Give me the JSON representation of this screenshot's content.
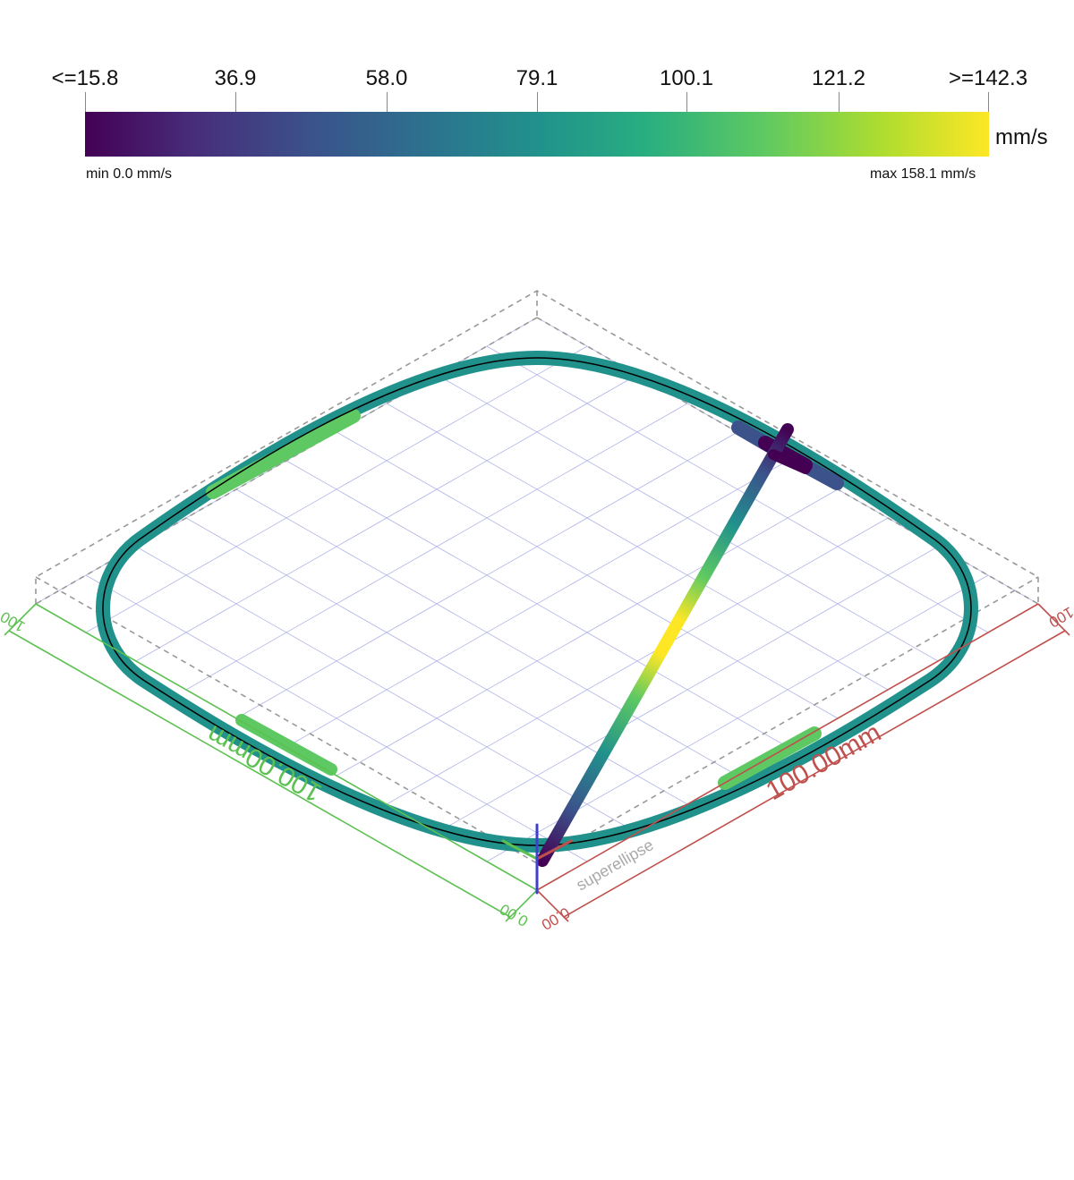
{
  "colorbar": {
    "ticks": [
      "<=15.8",
      "36.9",
      "58.0",
      "79.1",
      "100.1",
      "121.2",
      ">=142.3"
    ],
    "unit": "mm/s",
    "min_label": "min 0.0 mm/s",
    "max_label": "max 158.1 mm/s",
    "colormap": "viridis",
    "colors": [
      "#440154",
      "#472d7b",
      "#3b528b",
      "#2c728e",
      "#21918c",
      "#28ae80",
      "#5ec962",
      "#addc30",
      "#fde725"
    ]
  },
  "scene": {
    "object_label": "superellipse",
    "x_axis": {
      "dimension": "100.00mm",
      "start": "0.00",
      "end": "100",
      "color": "#c0504d"
    },
    "y_axis": {
      "dimension": "100.00mm",
      "start": "0.00",
      "end": "100",
      "color": "#5cc150"
    },
    "z_axis_color": "#4040d0",
    "bbox_color": "#999999",
    "grid_color": "#b0b4e8"
  }
}
